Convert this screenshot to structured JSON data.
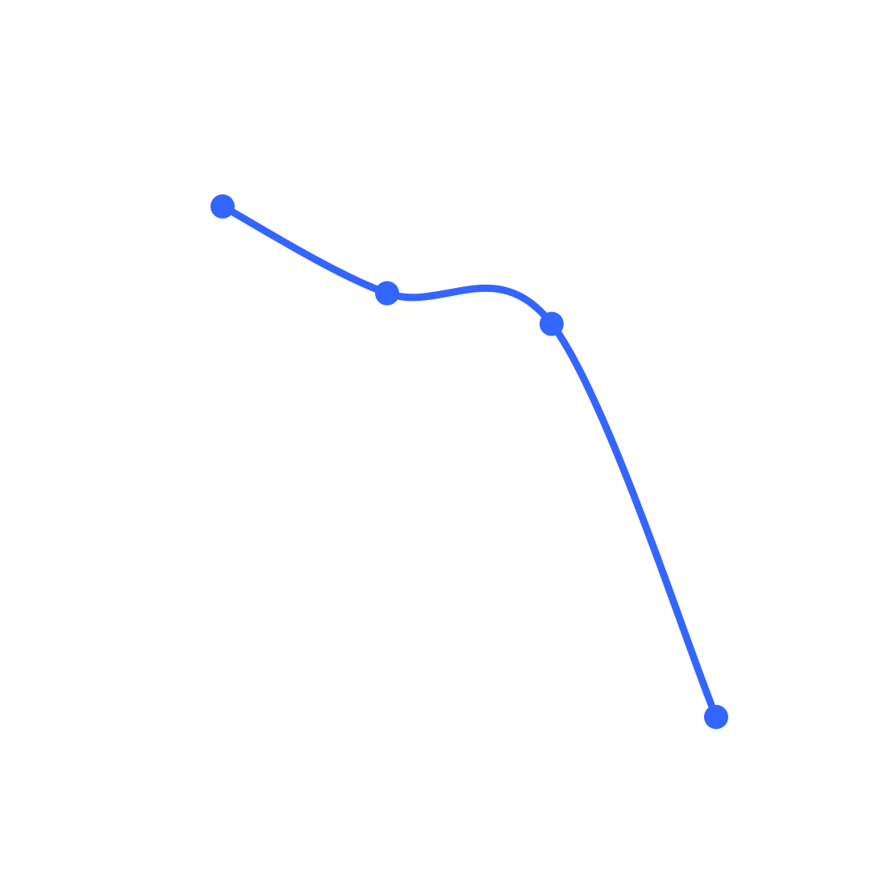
{
  "chart_data": {
    "type": "line",
    "categories": [
      null,
      null,
      null,
      null
    ],
    "series": [
      {
        "color": "#3366ff",
        "values": [
          10,
          8.3,
          7.7,
          0
        ]
      }
    ]
  }
}
